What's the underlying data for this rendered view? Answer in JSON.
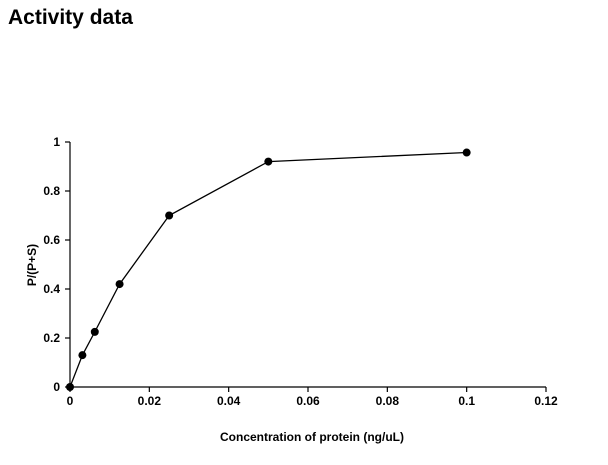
{
  "page": {
    "title": "Activity data"
  },
  "chart_data": {
    "type": "line",
    "title": "",
    "xlabel": "Concentration of protein (ng/uL)",
    "ylabel": "P/(P+S)",
    "xlim": [
      0,
      0.12
    ],
    "ylim": [
      0,
      1
    ],
    "x_ticks": [
      0,
      0.02,
      0.04,
      0.06,
      0.08,
      0.1,
      0.12
    ],
    "y_ticks": [
      0,
      0.2,
      0.4,
      0.6,
      0.8,
      1
    ],
    "x_tick_labels": [
      "0",
      "0.02",
      "0.04",
      "0.06",
      "0.08",
      "0.1",
      "0.12"
    ],
    "y_tick_labels": [
      "0",
      "0.2",
      "0.4",
      "0.6",
      "0.8",
      "1"
    ],
    "grid": false,
    "legend": "none",
    "marker": "filled-circle",
    "series": [
      {
        "color": "#000000",
        "x": [
          0,
          0.003125,
          0.00625,
          0.0125,
          0.025,
          0.05,
          0.1
        ],
        "y": [
          0,
          0.13,
          0.225,
          0.42,
          0.7,
          0.92,
          0.957
        ]
      }
    ]
  }
}
